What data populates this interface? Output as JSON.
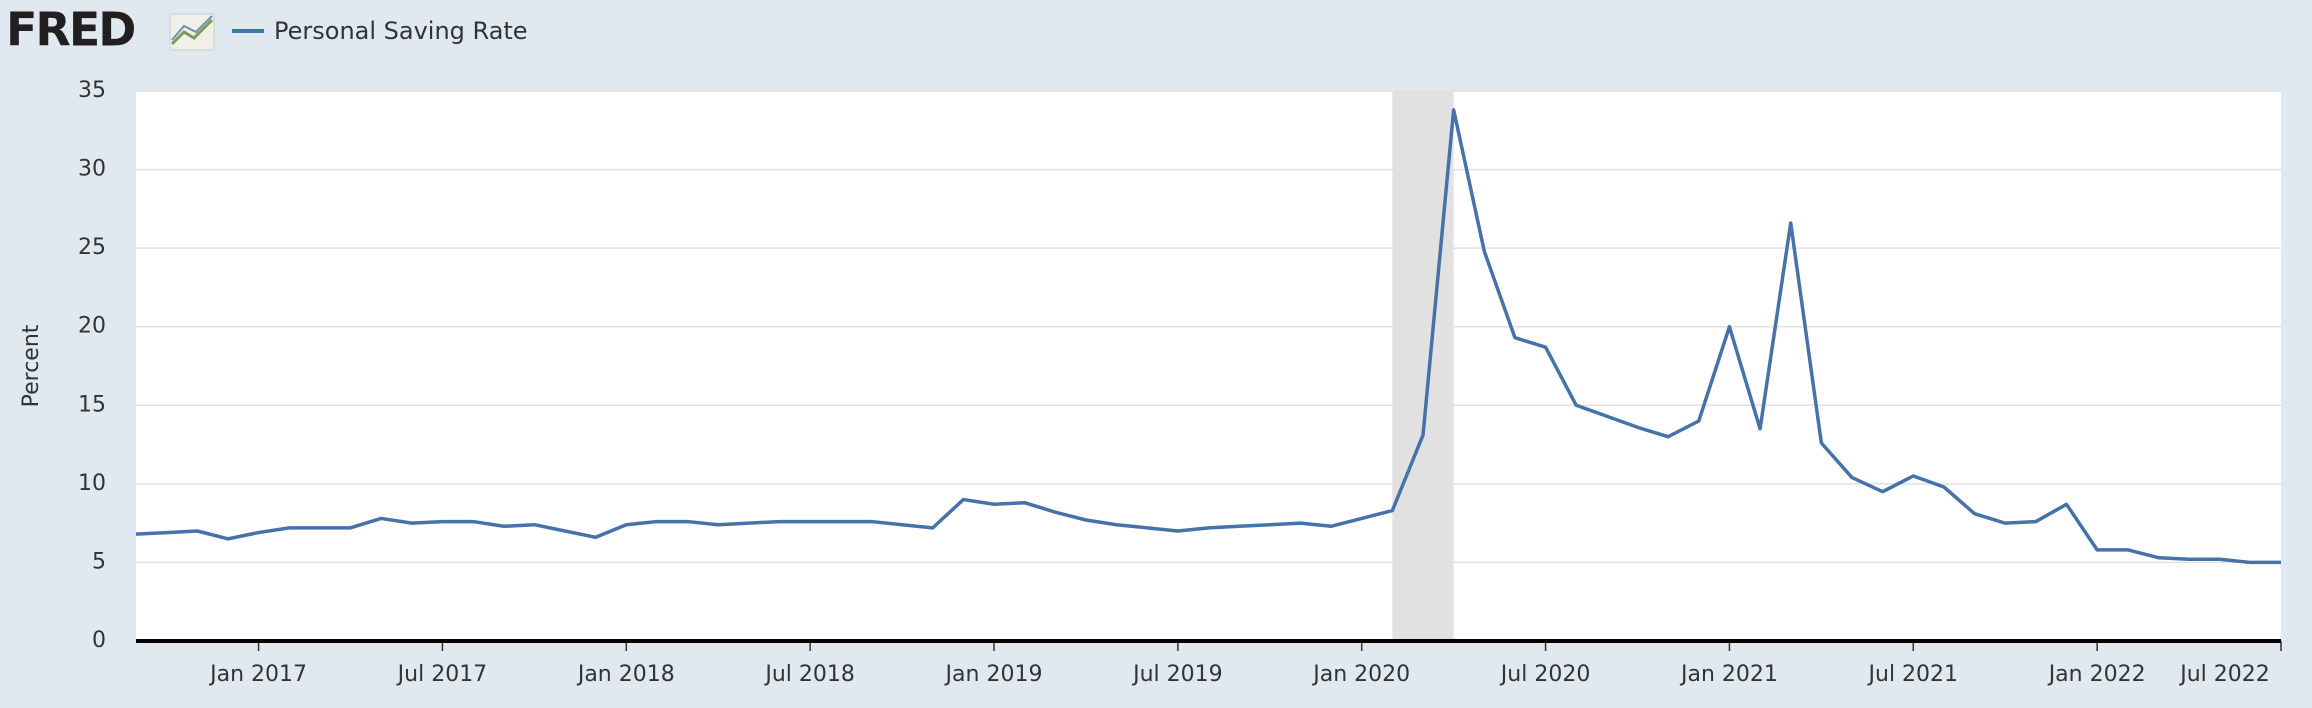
{
  "chart_data": {
    "type": "line",
    "logo": "FRED",
    "y_label": "Percent",
    "x": [
      "2016-09",
      "2016-10",
      "2016-11",
      "2016-12",
      "2017-01",
      "2017-02",
      "2017-03",
      "2017-04",
      "2017-05",
      "2017-06",
      "2017-07",
      "2017-08",
      "2017-09",
      "2017-10",
      "2017-11",
      "2017-12",
      "2018-01",
      "2018-02",
      "2018-03",
      "2018-04",
      "2018-05",
      "2018-06",
      "2018-07",
      "2018-08",
      "2018-09",
      "2018-10",
      "2018-11",
      "2018-12",
      "2019-01",
      "2019-02",
      "2019-03",
      "2019-04",
      "2019-05",
      "2019-06",
      "2019-07",
      "2019-08",
      "2019-09",
      "2019-10",
      "2019-11",
      "2019-12",
      "2020-01",
      "2020-02",
      "2020-03",
      "2020-04",
      "2020-05",
      "2020-06",
      "2020-07",
      "2020-08",
      "2020-09",
      "2020-10",
      "2020-11",
      "2020-12",
      "2021-01",
      "2021-02",
      "2021-03",
      "2021-04",
      "2021-05",
      "2021-06",
      "2021-07",
      "2021-08",
      "2021-09",
      "2021-10",
      "2021-11",
      "2021-12",
      "2022-01",
      "2022-02",
      "2022-03",
      "2022-04",
      "2022-05",
      "2022-06",
      "2022-07"
    ],
    "series": [
      {
        "name": "Personal Saving Rate",
        "color": "#4572a7",
        "values": [
          6.8,
          6.9,
          7.0,
          6.5,
          6.9,
          7.2,
          7.2,
          7.2,
          7.8,
          7.5,
          7.6,
          7.6,
          7.3,
          7.4,
          7.0,
          6.6,
          7.4,
          7.6,
          7.6,
          7.4,
          7.5,
          7.6,
          7.6,
          7.6,
          7.6,
          7.4,
          7.2,
          9.0,
          8.7,
          8.8,
          8.2,
          7.7,
          7.4,
          7.2,
          7.0,
          7.2,
          7.3,
          7.4,
          7.5,
          7.3,
          7.8,
          8.3,
          13.1,
          33.8,
          24.8,
          19.3,
          18.7,
          15.0,
          14.3,
          13.6,
          13.0,
          14.0,
          20.0,
          13.5,
          26.6,
          12.6,
          10.4,
          9.5,
          10.5,
          9.8,
          8.1,
          7.5,
          7.6,
          8.7,
          5.8,
          5.8,
          5.3,
          5.2,
          5.2,
          5.0,
          5.0
        ]
      }
    ],
    "recessions": [
      {
        "start": "2020-02",
        "end": "2020-04"
      }
    ],
    "xlim": [
      "2016-09",
      "2022-07"
    ],
    "xticks": [
      {
        "value": "2017-01",
        "label": "Jan 2017"
      },
      {
        "value": "2017-07",
        "label": "Jul 2017"
      },
      {
        "value": "2018-01",
        "label": "Jan 2018"
      },
      {
        "value": "2018-07",
        "label": "Jul 2018"
      },
      {
        "value": "2019-01",
        "label": "Jan 2019"
      },
      {
        "value": "2019-07",
        "label": "Jul 2019"
      },
      {
        "value": "2020-01",
        "label": "Jan 2020"
      },
      {
        "value": "2020-07",
        "label": "Jul 2020"
      },
      {
        "value": "2021-01",
        "label": "Jan 2021"
      },
      {
        "value": "2021-07",
        "label": "Jul 2021"
      },
      {
        "value": "2022-01",
        "label": "Jan 2022"
      },
      {
        "value": "2022-07",
        "label": "Jul 2022"
      }
    ],
    "ylim": [
      0,
      35
    ],
    "yticks": [
      0,
      5,
      10,
      15,
      20,
      25,
      30,
      35
    ],
    "grid": true
  }
}
